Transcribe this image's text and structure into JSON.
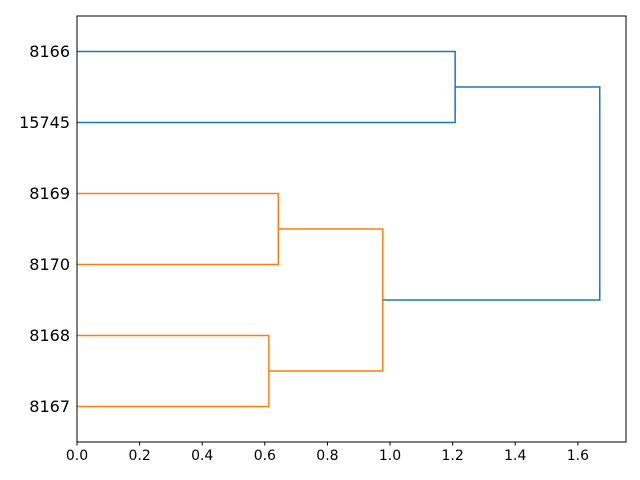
{
  "figure": {
    "background": "#ffffff",
    "title": ""
  },
  "chart_data": {
    "type": "dendrogram",
    "orientation": "right",
    "title": "",
    "xlabel": "",
    "ylabel": "",
    "xlim": [
      0,
      1.7538
    ],
    "ylim": [
      0,
      60
    ],
    "grid": false,
    "axis_color": "#000000",
    "x_ticks": [
      "0.0",
      "0.2",
      "0.4",
      "0.6",
      "0.8",
      "1.0",
      "1.2",
      "1.4",
      "1.6"
    ],
    "x_tick_values": [
      0.0,
      0.2,
      0.4,
      0.6,
      0.8,
      1.0,
      1.2,
      1.4,
      1.6
    ],
    "leaves": [
      {
        "label": "8166",
        "position": 55
      },
      {
        "label": "15745",
        "position": 45
      },
      {
        "label": "8169",
        "position": 35
      },
      {
        "label": "8170",
        "position": 25
      },
      {
        "label": "8168",
        "position": 15
      },
      {
        "label": "8167",
        "position": 5
      }
    ],
    "colors": {
      "cluster_blue": "#1f77b4",
      "cluster_orange": "#ff7f0e"
    },
    "links": [
      {
        "pair": [
          "8166",
          "15745"
        ],
        "children_x": [
          0,
          0
        ],
        "children_y": [
          55,
          45
        ],
        "height": 1.208,
        "color": "#1f77b4"
      },
      {
        "pair": [
          "8169",
          "8170"
        ],
        "children_x": [
          0,
          0
        ],
        "children_y": [
          35,
          25
        ],
        "height": 0.643,
        "color": "#ff7f0e"
      },
      {
        "pair": [
          "8168",
          "8167"
        ],
        "children_x": [
          0,
          0
        ],
        "children_y": [
          15,
          5
        ],
        "height": 0.613,
        "color": "#ff7f0e"
      },
      {
        "pair": [
          "8169+8170",
          "8168+8167"
        ],
        "children_x": [
          0.643,
          0.613
        ],
        "children_y": [
          30,
          10
        ],
        "height": 0.977,
        "color": "#ff7f0e"
      },
      {
        "pair": [
          "8166+15745",
          "orange-cluster"
        ],
        "children_x": [
          1.208,
          0.977
        ],
        "children_y": [
          50,
          20
        ],
        "height": 1.67,
        "color": "#1f77b4"
      }
    ],
    "line_width": 1.5,
    "legend": null
  }
}
